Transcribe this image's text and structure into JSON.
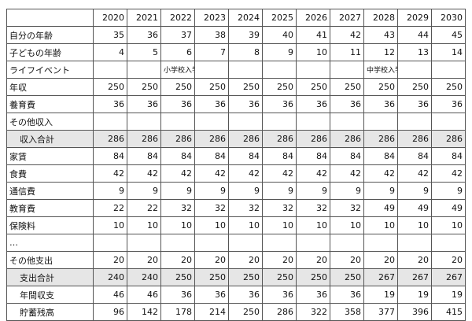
{
  "table": {
    "years": [
      2020,
      2021,
      2022,
      2023,
      2024,
      2025,
      2026,
      2027,
      2028,
      2029,
      2030
    ],
    "rows": [
      {
        "label": "自分の年齢",
        "cells": [
          35,
          36,
          37,
          38,
          39,
          40,
          41,
          42,
          43,
          44,
          45
        ]
      },
      {
        "label": "子どもの年齢",
        "cells": [
          4,
          5,
          6,
          7,
          8,
          9,
          10,
          11,
          12,
          13,
          14
        ]
      },
      {
        "label": "ライフイベント",
        "cells": [
          null,
          null,
          "小学校入学",
          null,
          null,
          null,
          null,
          null,
          "中学校入学",
          null,
          null
        ]
      },
      {
        "label": "年収",
        "cells": [
          250,
          250,
          250,
          250,
          250,
          250,
          250,
          250,
          250,
          250,
          250
        ]
      },
      {
        "label": "養育費",
        "cells": [
          36,
          36,
          36,
          36,
          36,
          36,
          36,
          36,
          36,
          36,
          36
        ]
      },
      {
        "label": "その他収入",
        "cells": [
          null,
          null,
          null,
          null,
          null,
          null,
          null,
          null,
          null,
          null,
          null
        ]
      },
      {
        "label": "収入合計",
        "cells": [
          286,
          286,
          286,
          286,
          286,
          286,
          286,
          286,
          286,
          286,
          286
        ]
      },
      {
        "label": "家賃",
        "cells": [
          84,
          84,
          84,
          84,
          84,
          84,
          84,
          84,
          84,
          84,
          84
        ]
      },
      {
        "label": "食費",
        "cells": [
          42,
          42,
          42,
          42,
          42,
          42,
          42,
          42,
          42,
          42,
          42
        ]
      },
      {
        "label": "通信費",
        "cells": [
          9,
          9,
          9,
          9,
          9,
          9,
          9,
          9,
          9,
          9,
          9
        ]
      },
      {
        "label": "教育費",
        "cells": [
          22,
          22,
          32,
          32,
          32,
          32,
          32,
          32,
          49,
          49,
          49
        ]
      },
      {
        "label": "保険料",
        "cells": [
          10,
          10,
          10,
          10,
          10,
          10,
          10,
          10,
          10,
          10,
          10
        ]
      },
      {
        "label": "…",
        "cells": [
          null,
          null,
          null,
          null,
          null,
          null,
          null,
          null,
          null,
          null,
          null
        ]
      },
      {
        "label": "その他支出",
        "cells": [
          20,
          20,
          20,
          20,
          20,
          20,
          20,
          20,
          20,
          20,
          20
        ]
      },
      {
        "label": "支出合計",
        "cells": [
          240,
          240,
          250,
          250,
          250,
          250,
          250,
          250,
          267,
          267,
          267
        ]
      },
      {
        "label": "年間収支",
        "cells": [
          46,
          46,
          36,
          36,
          36,
          36,
          36,
          36,
          19,
          19,
          19
        ]
      },
      {
        "label": "貯蓄残高",
        "cells": [
          96,
          142,
          178,
          214,
          250,
          286,
          322,
          358,
          377,
          396,
          415
        ]
      }
    ]
  }
}
